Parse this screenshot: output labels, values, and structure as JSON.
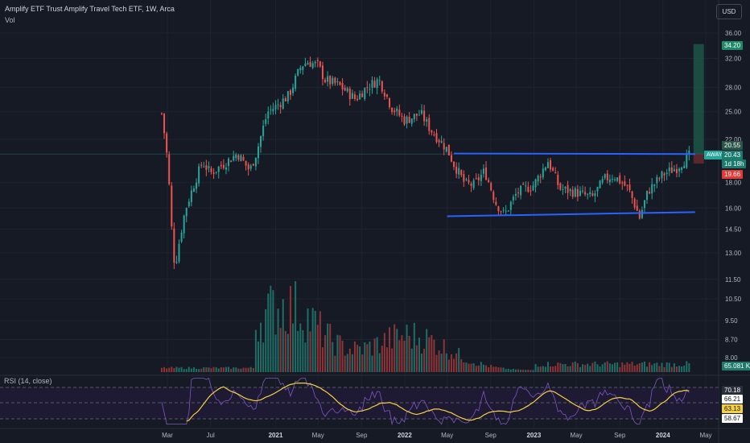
{
  "header": {
    "title": "Amplify ETF Trust Amplify Travel Tech ETF, 1W, Arca",
    "volume_label": "Vol",
    "currency": "USD",
    "rsi_label": "RSI (14, close)"
  },
  "colors": {
    "up": "#26a69a",
    "down": "#ef5350",
    "trendline": "#2962ff",
    "rsi_line": "#7e57c2",
    "rsi_ma": "#f5d142",
    "background": "#161a25"
  },
  "price_badges": {
    "target": "34.20",
    "high_line": "20.55",
    "ticker": "AWAY",
    "last": "20.43",
    "countdown": "1d 18h",
    "low_line": "19.66",
    "volume": "65.081 K"
  },
  "rsi_badges": [
    "70.18",
    "66.21",
    "63.13",
    "58.67"
  ],
  "chart_data": {
    "type": "candlestick",
    "y_axis_scale": "log",
    "y_tick_labels": [
      "36.00",
      "32.00",
      "28.00",
      "25.00",
      "22.00",
      "18.00",
      "16.00",
      "14.50",
      "13.00",
      "11.50",
      "10.50",
      "9.50",
      "8.70",
      "8.00"
    ],
    "x_tick_labels": [
      {
        "label": "Mar",
        "date": "2020-03-01",
        "bold": false
      },
      {
        "label": "Jul",
        "date": "2020-07-01",
        "bold": false
      },
      {
        "label": "2021",
        "date": "2021-01-01",
        "bold": true
      },
      {
        "label": "May",
        "date": "2021-05-01",
        "bold": false
      },
      {
        "label": "Sep",
        "date": "2021-09-01",
        "bold": false
      },
      {
        "label": "2022",
        "date": "2022-01-01",
        "bold": true
      },
      {
        "label": "May",
        "date": "2022-05-01",
        "bold": false
      },
      {
        "label": "Sep",
        "date": "2022-09-01",
        "bold": false
      },
      {
        "label": "2023",
        "date": "2023-01-01",
        "bold": true
      },
      {
        "label": "May",
        "date": "2023-05-01",
        "bold": false
      },
      {
        "label": "Sep",
        "date": "2023-09-01",
        "bold": false
      },
      {
        "label": "2024",
        "date": "2024-01-01",
        "bold": true
      },
      {
        "label": "May",
        "date": "2024-05-01",
        "bold": false
      }
    ],
    "price_path": [
      [
        "2020-02-14",
        24.8
      ],
      [
        "2020-03-01",
        20.0
      ],
      [
        "2020-03-16",
        13.2
      ],
      [
        "2020-03-23",
        12.2
      ],
      [
        "2020-04-20",
        15.8
      ],
      [
        "2020-06-08",
        19.8
      ],
      [
        "2020-07-01",
        18.8
      ],
      [
        "2020-08-15",
        19.8
      ],
      [
        "2020-09-15",
        20.6
      ],
      [
        "2020-10-20",
        19.0
      ],
      [
        "2020-11-09",
        20.8
      ],
      [
        "2020-12-10",
        25.0
      ],
      [
        "2021-01-01",
        25.6
      ],
      [
        "2021-02-08",
        27.0
      ],
      [
        "2021-03-15",
        31.0
      ],
      [
        "2021-04-01",
        31.5
      ],
      [
        "2021-05-01",
        31.0
      ],
      [
        "2021-05-20",
        29.0
      ],
      [
        "2021-07-01",
        28.2
      ],
      [
        "2021-08-15",
        26.5
      ],
      [
        "2021-09-15",
        28.0
      ],
      [
        "2021-10-20",
        29.0
      ],
      [
        "2021-11-25",
        25.5
      ],
      [
        "2022-01-01",
        24.0
      ],
      [
        "2022-02-15",
        24.8
      ],
      [
        "2022-03-15",
        23.0
      ],
      [
        "2022-05-01",
        21.0
      ],
      [
        "2022-05-20",
        19.6
      ],
      [
        "2022-06-20",
        17.9
      ],
      [
        "2022-07-15",
        17.8
      ],
      [
        "2022-08-15",
        19.0
      ],
      [
        "2022-09-15",
        16.4
      ],
      [
        "2022-10-10",
        15.5
      ],
      [
        "2022-11-15",
        17.2
      ],
      [
        "2023-01-01",
        17.8
      ],
      [
        "2023-02-10",
        19.9
      ],
      [
        "2023-03-15",
        17.5
      ],
      [
        "2023-05-01",
        17.2
      ],
      [
        "2023-06-15",
        16.8
      ],
      [
        "2023-07-20",
        18.3
      ],
      [
        "2023-08-15",
        18.6
      ],
      [
        "2023-09-25",
        17.5
      ],
      [
        "2023-10-27",
        15.3
      ],
      [
        "2023-11-20",
        17.3
      ],
      [
        "2024-01-01",
        18.7
      ],
      [
        "2024-02-10",
        19.3
      ],
      [
        "2024-03-15",
        20.4
      ]
    ],
    "trendlines": [
      {
        "from": [
          "2022-05-20",
          20.6
        ],
        "to": [
          "2024-04-01",
          20.55
        ]
      },
      {
        "from": [
          "2022-05-01",
          15.4
        ],
        "to": [
          "2024-04-01",
          15.7
        ]
      }
    ],
    "volume_peak_date": "2021-01-25",
    "rsi": {
      "upper": 70,
      "middle": 50,
      "lower": 30,
      "last": 66.21,
      "ma_last": 63.13
    }
  }
}
